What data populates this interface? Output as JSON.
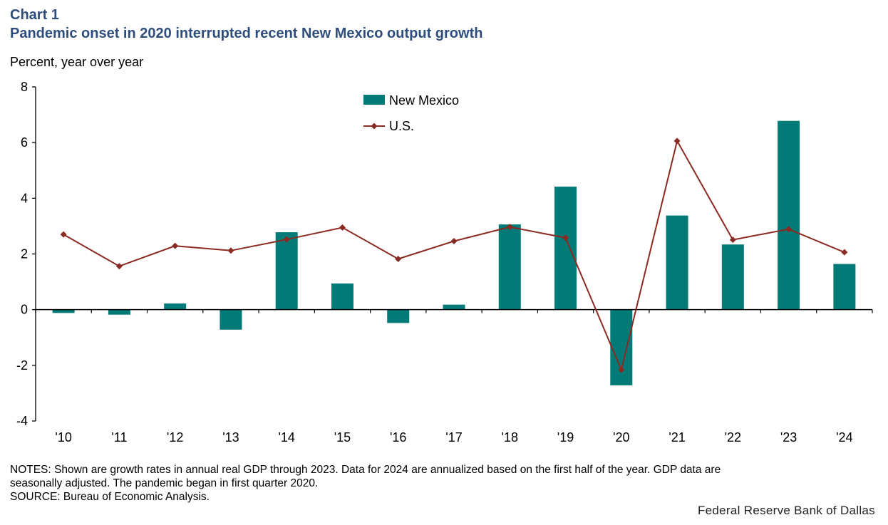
{
  "header": {
    "chart_number": "Chart 1",
    "title": "Pandemic onset in 2020 interrupted recent New Mexico output growth",
    "unit_label": "Percent, year over year"
  },
  "footer": {
    "notes_line1": "NOTES: Shown are growth rates in annual real GDP through 2023. Data for 2024 are annualized  based on the first half of the year. GDP data are",
    "notes_line2": "seasonally adjusted. The pandemic  began in first quarter 2020.",
    "source": "SOURCE: Bureau of Economic  Analysis.",
    "credit": "Federal Reserve Bank of Dallas"
  },
  "colors": {
    "bar": "#027b78",
    "line": "#8b2a22",
    "title": "#2e4d7b"
  },
  "chart_data": {
    "type": "bar+line",
    "categories": [
      "'10",
      "'11",
      "'12",
      "'13",
      "'14",
      "'15",
      "'16",
      "'17",
      "'18",
      "'19",
      "'20",
      "'21",
      "'22",
      "'23",
      "'24"
    ],
    "ylim": [
      -4,
      8
    ],
    "yticks": [
      -4,
      -2,
      0,
      2,
      4,
      6,
      8
    ],
    "ylabel": "Percent, year over year",
    "legend_position": "top-center",
    "grid": false,
    "series": [
      {
        "name": "New Mexico",
        "kind": "bar",
        "values": [
          -0.12,
          -0.18,
          0.22,
          -0.72,
          2.78,
          0.94,
          -0.48,
          0.18,
          3.06,
          4.42,
          -2.72,
          3.38,
          2.34,
          6.78,
          1.64
        ]
      },
      {
        "name": "U.S.",
        "kind": "line",
        "marker": "diamond",
        "values": [
          2.7,
          1.56,
          2.29,
          2.12,
          2.52,
          2.95,
          1.82,
          2.46,
          2.97,
          2.58,
          -2.16,
          6.06,
          2.51,
          2.89,
          2.06
        ]
      }
    ]
  }
}
